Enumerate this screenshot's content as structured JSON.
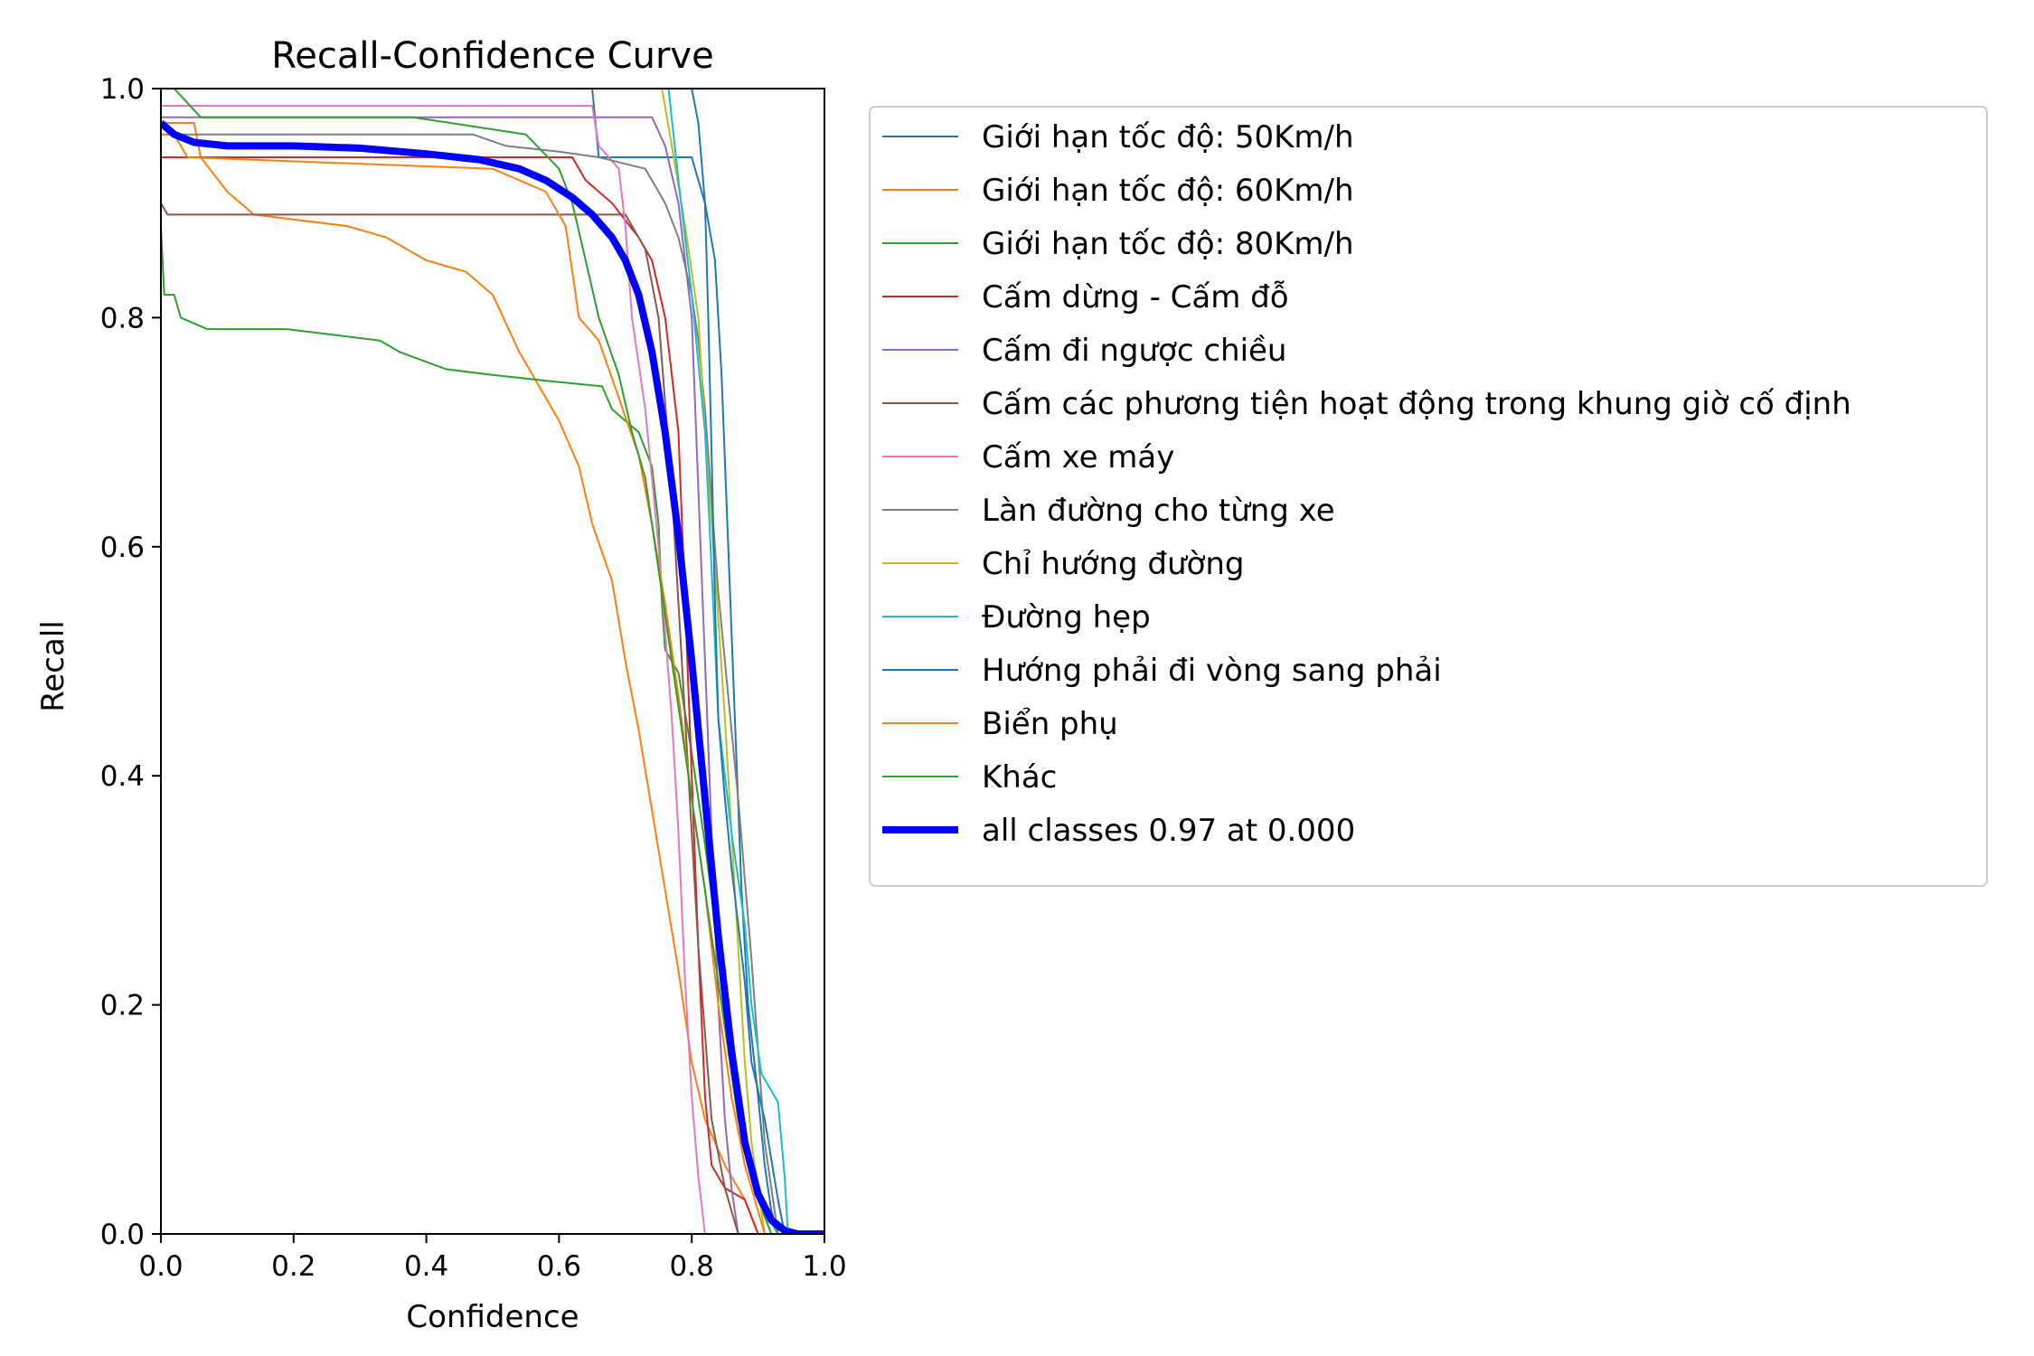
{
  "chart_data": {
    "type": "line",
    "title": "Recall-Confidence Curve",
    "xlabel": "Confidence",
    "ylabel": "Recall",
    "xlim": [
      0,
      1
    ],
    "ylim": [
      0,
      1
    ],
    "xticks": [
      "0.0",
      "0.2",
      "0.4",
      "0.6",
      "0.8",
      "1.0"
    ],
    "yticks": [
      "0.0",
      "0.2",
      "0.4",
      "0.6",
      "0.8",
      "1.0"
    ],
    "grid": false,
    "legend_position": "outside-right",
    "series": [
      {
        "name": "Giới hạn tốc độ: 50Km/h",
        "color": "#1f77b4",
        "width": 1,
        "points": [
          [
            0.65,
            1.0
          ],
          [
            0.66,
            0.94
          ],
          [
            0.75,
            0.94
          ],
          [
            0.8,
            0.94
          ],
          [
            0.81,
            0.92
          ],
          [
            0.82,
            0.9
          ],
          [
            0.835,
            0.85
          ],
          [
            0.845,
            0.75
          ],
          [
            0.855,
            0.6
          ],
          [
            0.865,
            0.45
          ],
          [
            0.875,
            0.3
          ],
          [
            0.885,
            0.2
          ],
          [
            0.9,
            0.12
          ],
          [
            0.91,
            0.06
          ],
          [
            0.92,
            0.02
          ],
          [
            0.93,
            0.0
          ]
        ]
      },
      {
        "name": "Giới hạn tốc độ: 60Km/h",
        "color": "#ff7f0e",
        "width": 1,
        "points": [
          [
            0.0,
            0.97
          ],
          [
            0.05,
            0.97
          ],
          [
            0.06,
            0.94
          ],
          [
            0.1,
            0.91
          ],
          [
            0.14,
            0.89
          ],
          [
            0.28,
            0.88
          ],
          [
            0.34,
            0.87
          ],
          [
            0.4,
            0.85
          ],
          [
            0.46,
            0.84
          ],
          [
            0.5,
            0.82
          ],
          [
            0.54,
            0.77
          ],
          [
            0.57,
            0.74
          ],
          [
            0.6,
            0.71
          ],
          [
            0.63,
            0.67
          ],
          [
            0.65,
            0.62
          ],
          [
            0.68,
            0.57
          ],
          [
            0.7,
            0.5
          ],
          [
            0.72,
            0.44
          ],
          [
            0.74,
            0.37
          ],
          [
            0.76,
            0.3
          ],
          [
            0.78,
            0.23
          ],
          [
            0.8,
            0.15
          ],
          [
            0.82,
            0.1
          ],
          [
            0.85,
            0.06
          ],
          [
            0.88,
            0.03
          ],
          [
            0.9,
            0.0
          ]
        ]
      },
      {
        "name": "Giới hạn tốc độ: 80Km/h",
        "color": "#2ca02c",
        "width": 1,
        "points": [
          [
            0.0,
            0.88
          ],
          [
            0.005,
            0.82
          ],
          [
            0.02,
            0.82
          ],
          [
            0.03,
            0.8
          ],
          [
            0.07,
            0.79
          ],
          [
            0.19,
            0.79
          ],
          [
            0.33,
            0.78
          ],
          [
            0.36,
            0.77
          ],
          [
            0.43,
            0.755
          ],
          [
            0.5,
            0.75
          ],
          [
            0.58,
            0.745
          ],
          [
            0.665,
            0.74
          ],
          [
            0.68,
            0.72
          ],
          [
            0.72,
            0.7
          ],
          [
            0.74,
            0.67
          ],
          [
            0.75,
            0.62
          ],
          [
            0.755,
            0.55
          ],
          [
            0.76,
            0.51
          ],
          [
            0.78,
            0.49
          ],
          [
            0.8,
            0.42
          ],
          [
            0.82,
            0.34
          ],
          [
            0.84,
            0.25
          ],
          [
            0.86,
            0.16
          ],
          [
            0.88,
            0.08
          ],
          [
            0.9,
            0.03
          ],
          [
            0.92,
            0.0
          ]
        ]
      },
      {
        "name": "Cấm dừng - Cấm đỗ",
        "color": "#d62728",
        "width": 1,
        "points": [
          [
            0.0,
            0.94
          ],
          [
            0.62,
            0.94
          ],
          [
            0.64,
            0.92
          ],
          [
            0.68,
            0.9
          ],
          [
            0.72,
            0.87
          ],
          [
            0.74,
            0.85
          ],
          [
            0.76,
            0.8
          ],
          [
            0.78,
            0.7
          ],
          [
            0.79,
            0.55
          ],
          [
            0.8,
            0.4
          ],
          [
            0.81,
            0.25
          ],
          [
            0.82,
            0.12
          ],
          [
            0.83,
            0.06
          ],
          [
            0.85,
            0.04
          ],
          [
            0.88,
            0.03
          ],
          [
            0.9,
            0.0
          ]
        ]
      },
      {
        "name": "Cấm đi ngược chiều",
        "color": "#9467bd",
        "width": 1,
        "points": [
          [
            0.0,
            0.975
          ],
          [
            0.74,
            0.975
          ],
          [
            0.76,
            0.95
          ],
          [
            0.78,
            0.9
          ],
          [
            0.8,
            0.8
          ],
          [
            0.81,
            0.65
          ],
          [
            0.82,
            0.5
          ],
          [
            0.83,
            0.35
          ],
          [
            0.84,
            0.2
          ],
          [
            0.85,
            0.1
          ],
          [
            0.86,
            0.04
          ],
          [
            0.87,
            0.0
          ]
        ]
      },
      {
        "name": "Cấm các phương tiện hoạt động trong khung giờ cố định",
        "color": "#8c564b",
        "width": 1,
        "points": [
          [
            0.0,
            0.9
          ],
          [
            0.01,
            0.89
          ],
          [
            0.7,
            0.89
          ],
          [
            0.73,
            0.86
          ],
          [
            0.75,
            0.8
          ],
          [
            0.77,
            0.65
          ],
          [
            0.79,
            0.45
          ],
          [
            0.81,
            0.25
          ],
          [
            0.83,
            0.1
          ],
          [
            0.85,
            0.04
          ],
          [
            0.87,
            0.0
          ]
        ]
      },
      {
        "name": "Cấm xe máy",
        "color": "#e377c2",
        "width": 1,
        "points": [
          [
            0.0,
            0.985
          ],
          [
            0.65,
            0.985
          ],
          [
            0.66,
            0.95
          ],
          [
            0.69,
            0.93
          ],
          [
            0.7,
            0.88
          ],
          [
            0.71,
            0.8
          ],
          [
            0.73,
            0.72
          ],
          [
            0.75,
            0.6
          ],
          [
            0.77,
            0.45
          ],
          [
            0.78,
            0.35
          ],
          [
            0.79,
            0.22
          ],
          [
            0.8,
            0.12
          ],
          [
            0.81,
            0.05
          ],
          [
            0.82,
            0.0
          ]
        ]
      },
      {
        "name": "Làn đường cho từng xe",
        "color": "#7f7f7f",
        "width": 1,
        "points": [
          [
            0.0,
            0.96
          ],
          [
            0.47,
            0.96
          ],
          [
            0.52,
            0.95
          ],
          [
            0.6,
            0.945
          ],
          [
            0.66,
            0.94
          ],
          [
            0.73,
            0.93
          ],
          [
            0.76,
            0.9
          ],
          [
            0.78,
            0.87
          ],
          [
            0.8,
            0.82
          ],
          [
            0.81,
            0.78
          ],
          [
            0.82,
            0.72
          ],
          [
            0.83,
            0.64
          ],
          [
            0.84,
            0.56
          ],
          [
            0.85,
            0.5
          ],
          [
            0.86,
            0.44
          ],
          [
            0.87,
            0.38
          ],
          [
            0.88,
            0.31
          ],
          [
            0.89,
            0.24
          ],
          [
            0.9,
            0.16
          ],
          [
            0.91,
            0.08
          ],
          [
            0.92,
            0.04
          ],
          [
            0.93,
            0.0
          ]
        ]
      },
      {
        "name": "Chỉ hướng đường",
        "color": "#bcbd22",
        "width": 1,
        "points": [
          [
            0.755,
            1.0
          ],
          [
            0.77,
            0.95
          ],
          [
            0.79,
            0.88
          ],
          [
            0.81,
            0.8
          ],
          [
            0.82,
            0.7
          ],
          [
            0.835,
            0.58
          ],
          [
            0.85,
            0.45
          ],
          [
            0.86,
            0.35
          ],
          [
            0.87,
            0.25
          ],
          [
            0.88,
            0.15
          ],
          [
            0.89,
            0.08
          ],
          [
            0.9,
            0.04
          ],
          [
            0.91,
            0.0
          ]
        ]
      },
      {
        "name": "Đường hẹp",
        "color": "#17becf",
        "width": 1,
        "points": [
          [
            0.765,
            1.0
          ],
          [
            0.78,
            0.92
          ],
          [
            0.8,
            0.82
          ],
          [
            0.82,
            0.7
          ],
          [
            0.83,
            0.58
          ],
          [
            0.84,
            0.45
          ],
          [
            0.86,
            0.35
          ],
          [
            0.88,
            0.27
          ],
          [
            0.89,
            0.2
          ],
          [
            0.905,
            0.14
          ],
          [
            0.93,
            0.115
          ],
          [
            0.94,
            0.05
          ],
          [
            0.945,
            0.0
          ]
        ]
      },
      {
        "name": "Hướng phải đi vòng sang phải",
        "color": "#1f77b4",
        "width": 1,
        "points": [
          [
            0.8,
            1.0
          ],
          [
            0.81,
            0.97
          ],
          [
            0.82,
            0.9
          ],
          [
            0.825,
            0.8
          ],
          [
            0.83,
            0.68
          ],
          [
            0.835,
            0.55
          ],
          [
            0.84,
            0.45
          ],
          [
            0.85,
            0.38
          ],
          [
            0.86,
            0.32
          ],
          [
            0.87,
            0.27
          ],
          [
            0.88,
            0.22
          ],
          [
            0.89,
            0.15
          ],
          [
            0.91,
            0.1
          ],
          [
            0.93,
            0.03
          ],
          [
            0.94,
            0.0
          ]
        ]
      },
      {
        "name": "Biển phụ",
        "color": "#ff7f0e",
        "width": 1,
        "points": [
          [
            0.0,
            0.96
          ],
          [
            0.02,
            0.96
          ],
          [
            0.04,
            0.94
          ],
          [
            0.5,
            0.93
          ],
          [
            0.58,
            0.91
          ],
          [
            0.61,
            0.88
          ],
          [
            0.62,
            0.84
          ],
          [
            0.63,
            0.8
          ],
          [
            0.66,
            0.78
          ],
          [
            0.69,
            0.73
          ],
          [
            0.72,
            0.68
          ],
          [
            0.74,
            0.62
          ],
          [
            0.76,
            0.55
          ],
          [
            0.78,
            0.47
          ],
          [
            0.8,
            0.38
          ],
          [
            0.82,
            0.3
          ],
          [
            0.84,
            0.2
          ],
          [
            0.86,
            0.12
          ],
          [
            0.88,
            0.06
          ],
          [
            0.9,
            0.02
          ],
          [
            0.91,
            0.0
          ]
        ]
      },
      {
        "name": "Khác",
        "color": "#2ca02c",
        "width": 1,
        "points": [
          [
            0.0,
            1.0
          ],
          [
            0.02,
            1.0
          ],
          [
            0.06,
            0.975
          ],
          [
            0.38,
            0.975
          ],
          [
            0.55,
            0.96
          ],
          [
            0.6,
            0.93
          ],
          [
            0.62,
            0.9
          ],
          [
            0.64,
            0.85
          ],
          [
            0.66,
            0.8
          ],
          [
            0.69,
            0.75
          ],
          [
            0.71,
            0.7
          ],
          [
            0.73,
            0.66
          ],
          [
            0.75,
            0.58
          ],
          [
            0.77,
            0.5
          ],
          [
            0.79,
            0.42
          ],
          [
            0.81,
            0.34
          ],
          [
            0.83,
            0.26
          ],
          [
            0.85,
            0.18
          ],
          [
            0.87,
            0.1
          ],
          [
            0.89,
            0.05
          ],
          [
            0.91,
            0.02
          ],
          [
            0.93,
            0.0
          ]
        ]
      },
      {
        "name": "all classes 0.97 at 0.000",
        "color": "#0000ff",
        "width": 7,
        "points": [
          [
            0.0,
            0.97
          ],
          [
            0.02,
            0.96
          ],
          [
            0.05,
            0.953
          ],
          [
            0.1,
            0.95
          ],
          [
            0.2,
            0.95
          ],
          [
            0.3,
            0.948
          ],
          [
            0.4,
            0.943
          ],
          [
            0.48,
            0.938
          ],
          [
            0.54,
            0.93
          ],
          [
            0.58,
            0.92
          ],
          [
            0.62,
            0.905
          ],
          [
            0.65,
            0.89
          ],
          [
            0.68,
            0.87
          ],
          [
            0.7,
            0.85
          ],
          [
            0.72,
            0.82
          ],
          [
            0.74,
            0.77
          ],
          [
            0.76,
            0.7
          ],
          [
            0.78,
            0.61
          ],
          [
            0.8,
            0.5
          ],
          [
            0.82,
            0.38
          ],
          [
            0.84,
            0.26
          ],
          [
            0.86,
            0.16
          ],
          [
            0.88,
            0.08
          ],
          [
            0.9,
            0.035
          ],
          [
            0.92,
            0.012
          ],
          [
            0.94,
            0.003
          ],
          [
            0.96,
            0.0
          ],
          [
            1.0,
            0.0
          ]
        ]
      }
    ]
  }
}
